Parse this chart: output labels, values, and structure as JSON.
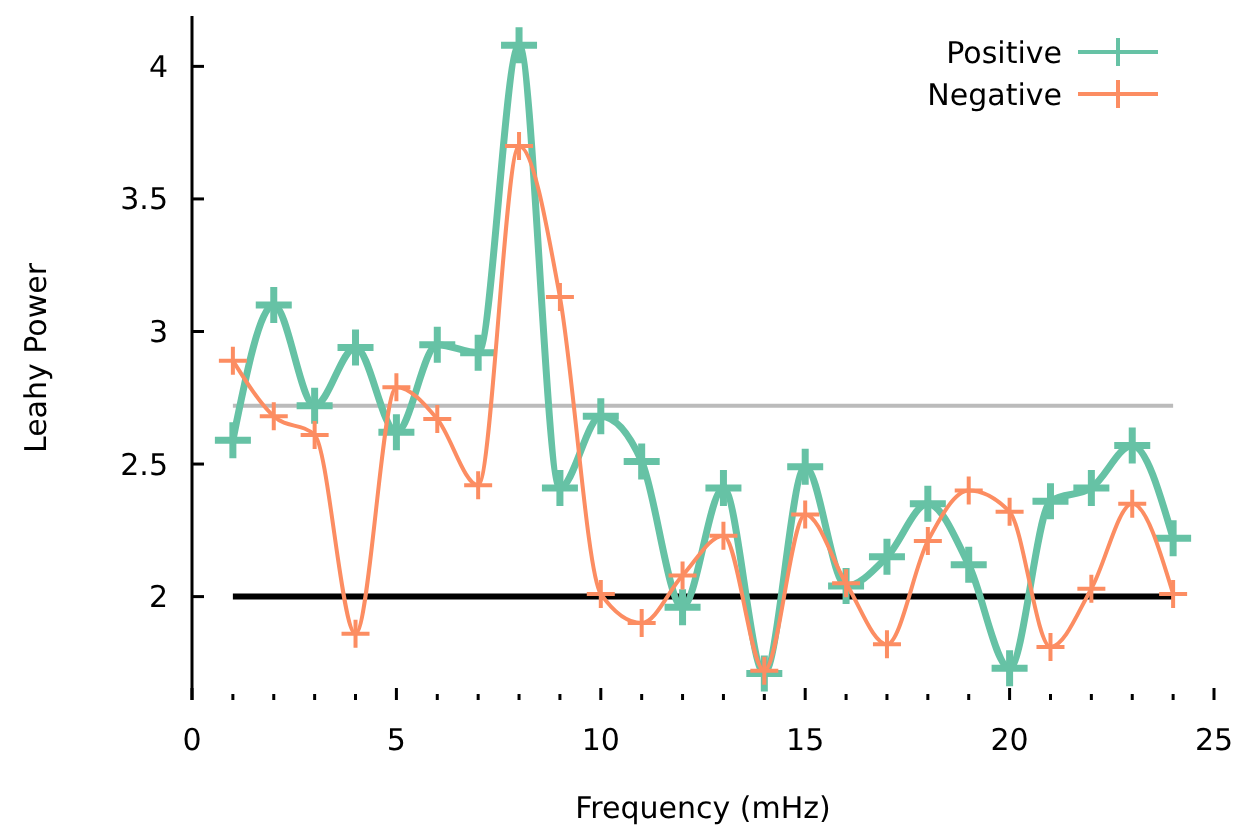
{
  "chart_data": {
    "type": "line",
    "xlabel": "Frequency (mHz)",
    "ylabel": "Leahy Power",
    "x": [
      1,
      2,
      3,
      4,
      5,
      6,
      7,
      8,
      9,
      10,
      11,
      12,
      13,
      14,
      15,
      16,
      17,
      18,
      19,
      20,
      21,
      22,
      23,
      24
    ],
    "series": [
      {
        "name": "Positive",
        "color": "#66c2a5",
        "values": [
          2.59,
          3.1,
          2.72,
          2.94,
          2.62,
          2.95,
          2.92,
          4.08,
          2.41,
          2.68,
          2.51,
          1.96,
          2.41,
          1.71,
          2.49,
          2.04,
          2.15,
          2.35,
          2.12,
          1.73,
          2.36,
          2.41,
          2.57,
          2.22
        ]
      },
      {
        "name": "Negative",
        "color": "#fc8d62",
        "values": [
          2.89,
          2.68,
          2.61,
          1.86,
          2.79,
          2.67,
          2.42,
          3.7,
          3.13,
          2.01,
          1.9,
          2.08,
          2.23,
          1.72,
          2.31,
          2.05,
          1.82,
          2.21,
          2.4,
          2.32,
          1.81,
          2.03,
          2.35,
          2.01
        ]
      }
    ],
    "xlim": [
      0,
      25
    ],
    "xticks": [
      0,
      {
        "value": 1,
        "label": null
      },
      {
        "value": 2,
        "label": null
      },
      {
        "value": 3,
        "label": null
      },
      {
        "value": 4,
        "label": null
      },
      5,
      {
        "value": 6,
        "label": null
      },
      {
        "value": 7,
        "label": null
      },
      {
        "value": 8,
        "label": null
      },
      {
        "value": 9,
        "label": null
      },
      10,
      {
        "value": 11,
        "label": null
      },
      {
        "value": 12,
        "label": null
      },
      {
        "value": 13,
        "label": null
      },
      {
        "value": 14,
        "label": null
      },
      15,
      {
        "value": 16,
        "label": null
      },
      {
        "value": 17,
        "label": null
      },
      {
        "value": 18,
        "label": null
      },
      {
        "value": 19,
        "label": null
      },
      20,
      {
        "value": 21,
        "label": null
      },
      {
        "value": 22,
        "label": null
      },
      {
        "value": 23,
        "label": null
      },
      {
        "value": 24,
        "label": null
      },
      25
    ],
    "ylim": [
      1.61,
      4.19
    ],
    "yticks": [
      2,
      2.5,
      3,
      3.5,
      4
    ],
    "ref_lines": [
      {
        "axis": "y",
        "value": 2,
        "color": "#000000"
      },
      {
        "axis": "y",
        "value": 2.72,
        "color": "#bbbbbb"
      }
    ],
    "marker": "cross",
    "line_style": "solid",
    "legend": "top right",
    "grid": false
  }
}
